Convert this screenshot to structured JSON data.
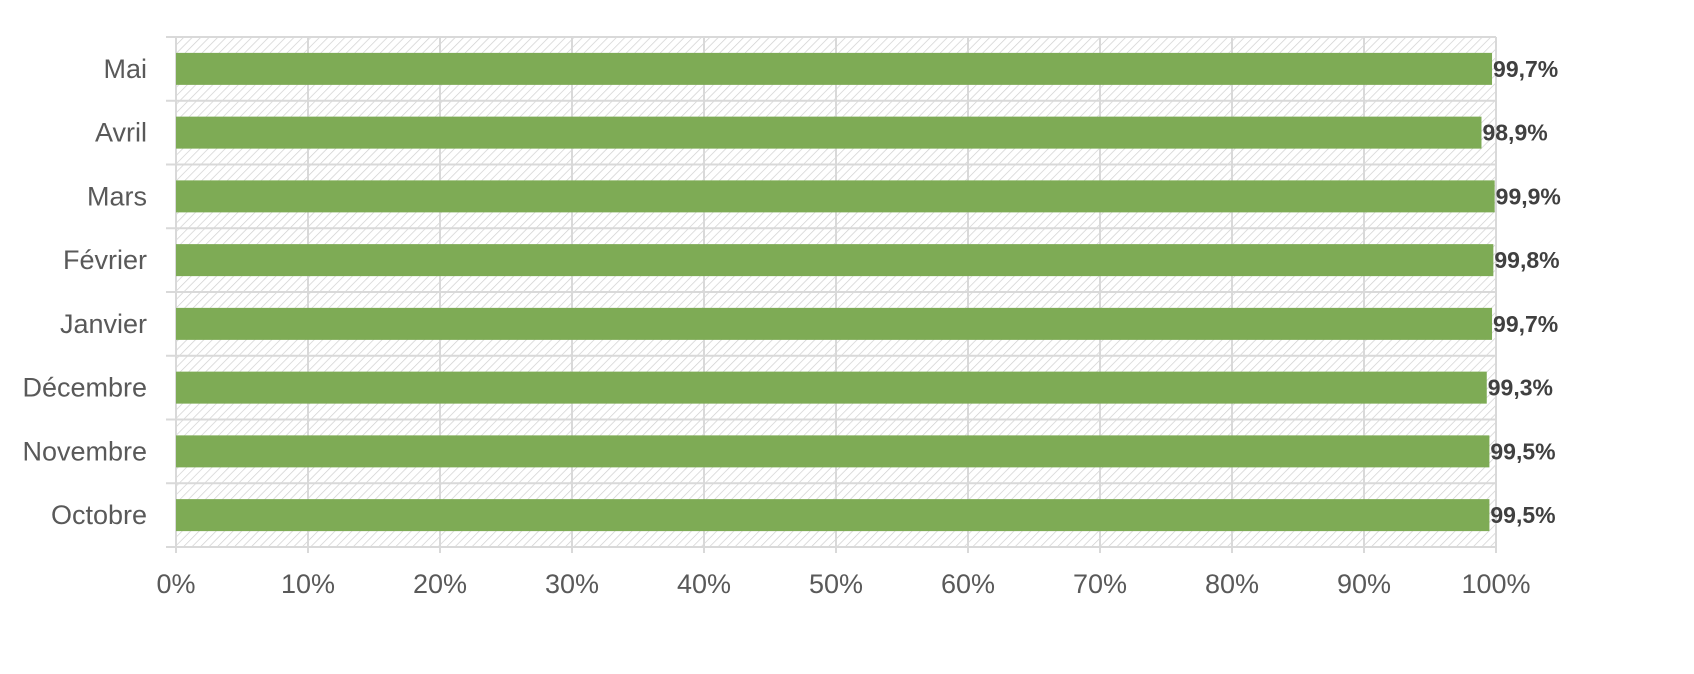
{
  "chart_data": {
    "type": "bar",
    "orientation": "horizontal",
    "categories": [
      "Mai",
      "Avril",
      "Mars",
      "Février",
      "Janvier",
      "Décembre",
      "Novembre",
      "Octobre"
    ],
    "values": [
      99.7,
      98.9,
      99.9,
      99.8,
      99.7,
      99.3,
      99.5,
      99.5
    ],
    "value_labels": [
      "99,7%",
      "98,9%",
      "99,9%",
      "99,8%",
      "99,7%",
      "99,3%",
      "99,5%",
      "99,5%"
    ],
    "xlim": [
      0,
      100
    ],
    "x_ticks": [
      0,
      10,
      20,
      30,
      40,
      50,
      60,
      70,
      80,
      90,
      100
    ],
    "x_tick_labels": [
      "0%",
      "10%",
      "20%",
      "30%",
      "40%",
      "50%",
      "60%",
      "70%",
      "80%",
      "90%",
      "100%"
    ],
    "grid": true,
    "legend": "none",
    "colors": {
      "bar": "#7eab55",
      "grid": "#d9d9d9",
      "hatch": "#c9c9c9",
      "text": "#595959",
      "data_label": "#404040"
    }
  }
}
